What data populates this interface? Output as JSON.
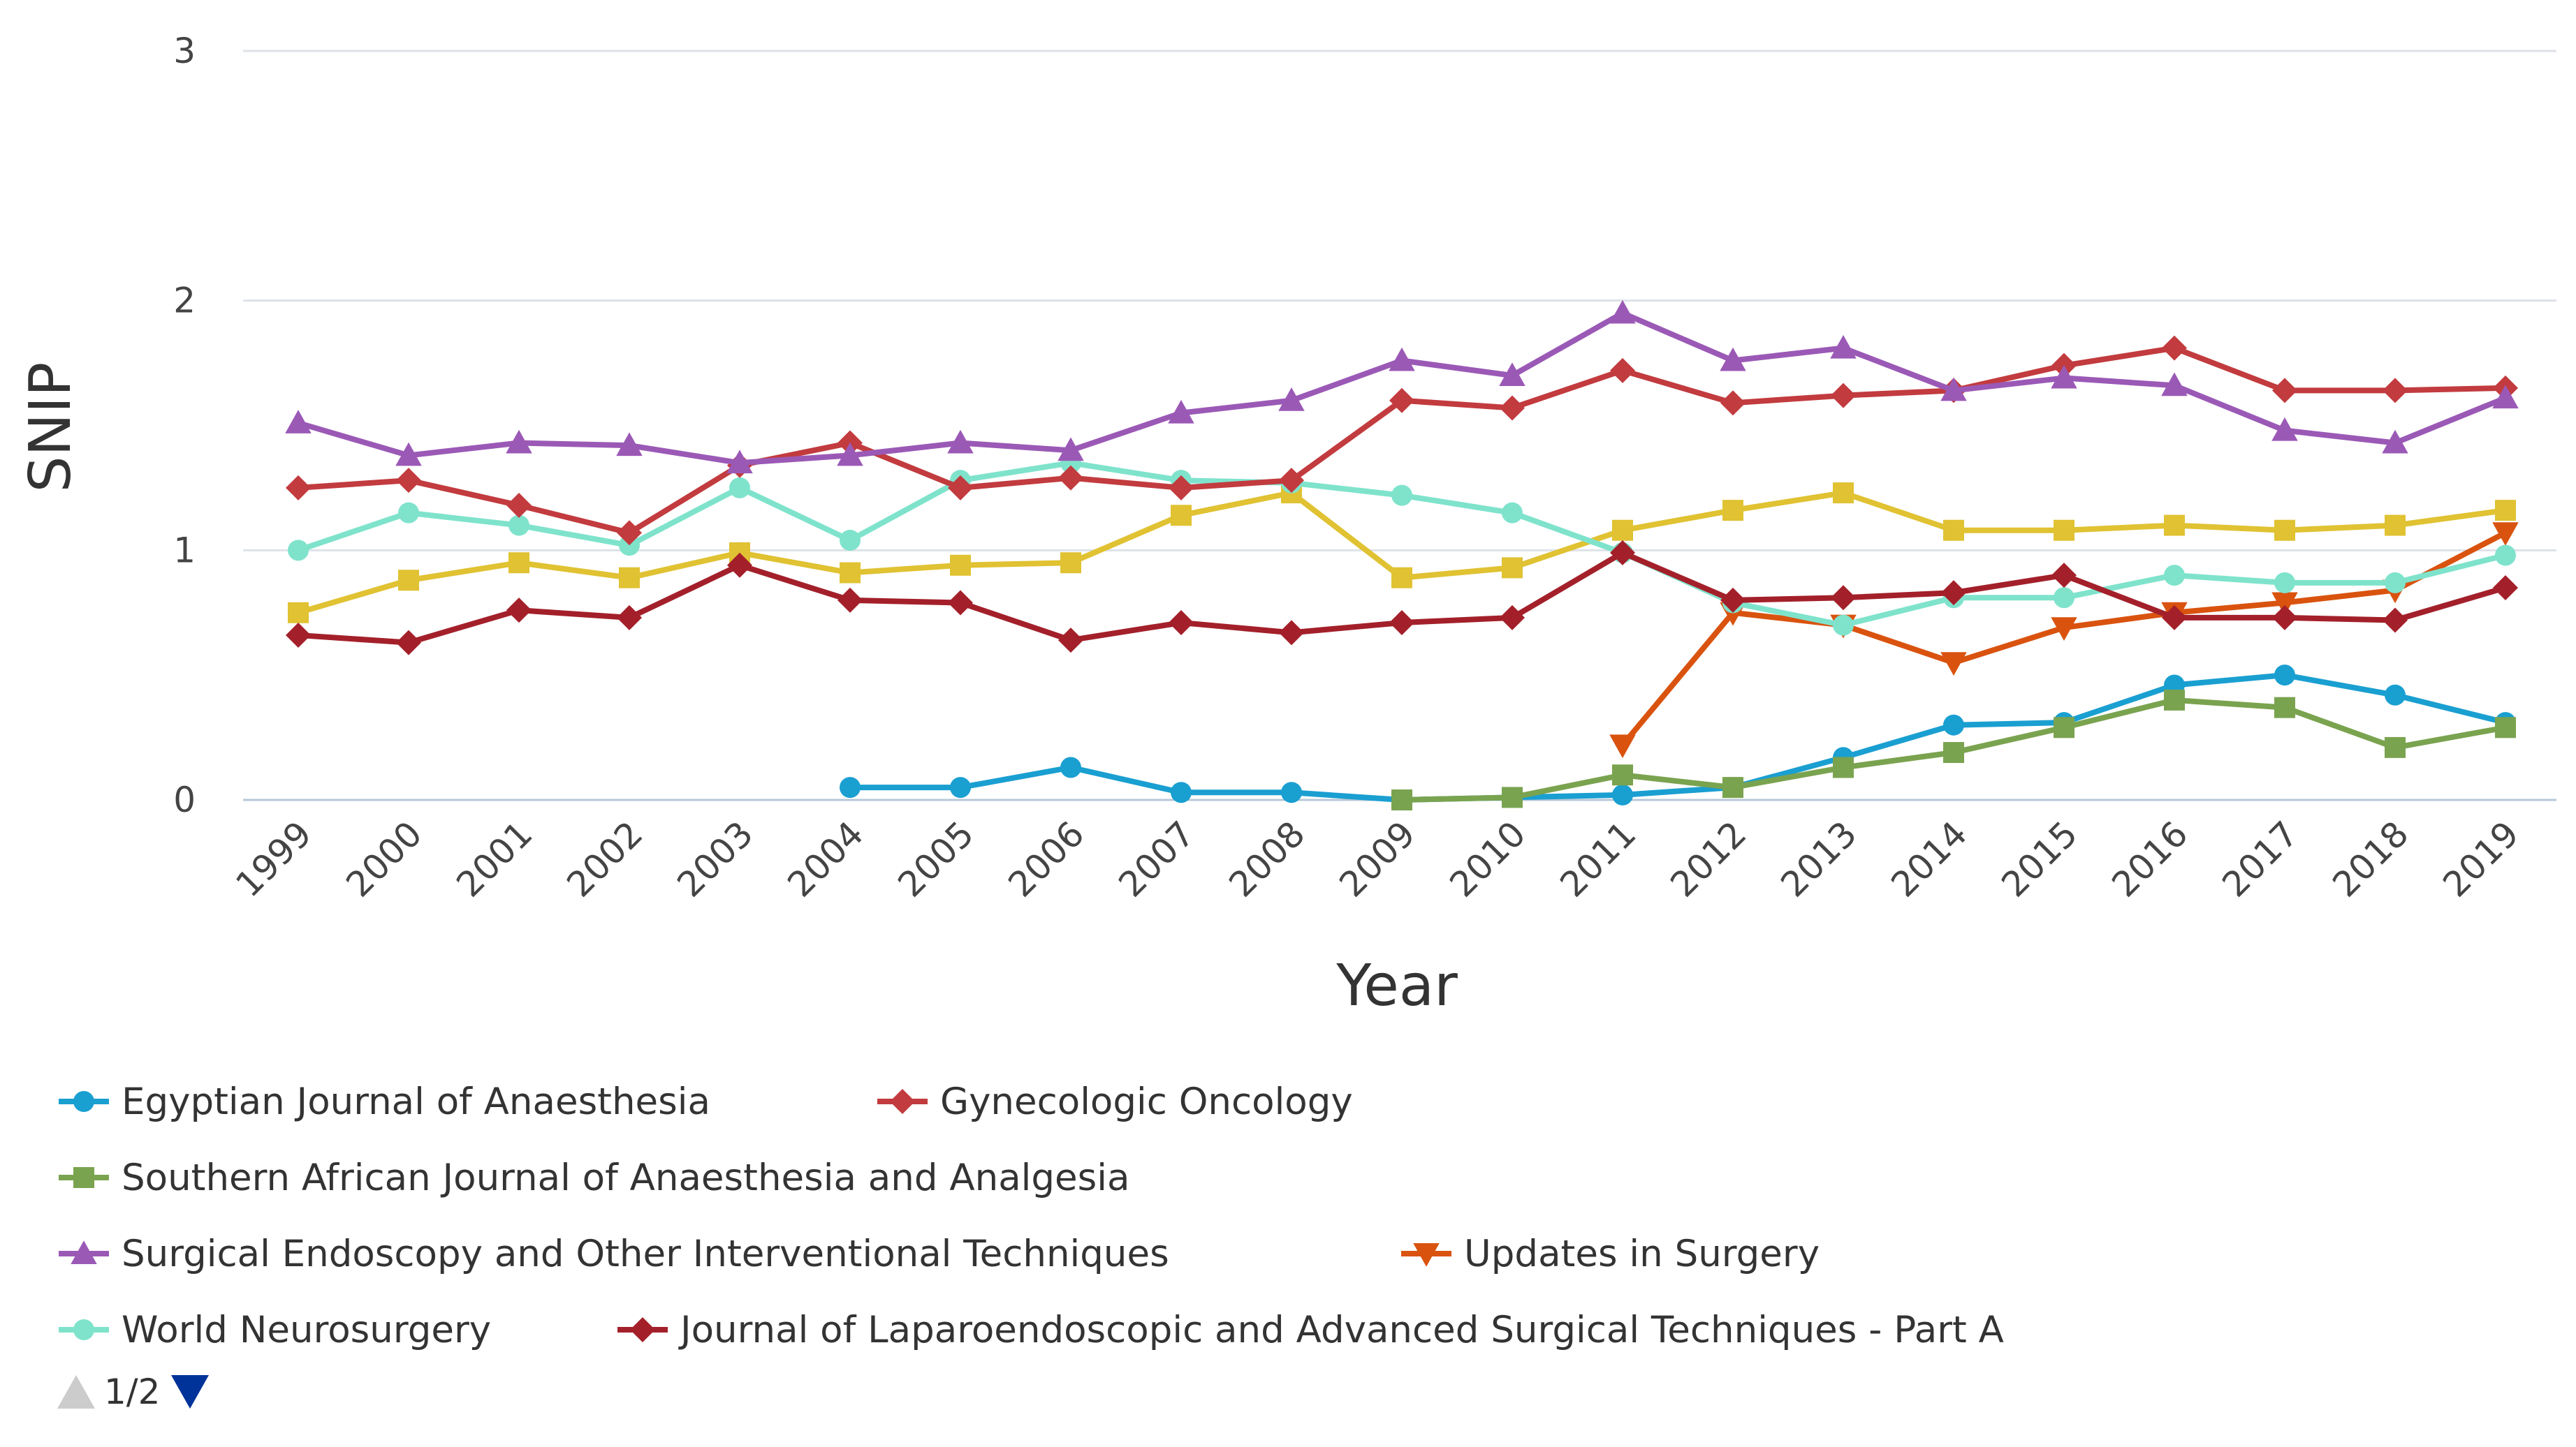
{
  "chart_data": {
    "type": "line",
    "xlabel": "Year",
    "ylabel": "SNIP",
    "ylim": [
      0,
      3
    ],
    "yticks": [
      "0",
      "1",
      "2",
      "3"
    ],
    "grid": true,
    "legend_position": "bottom",
    "x": [
      "1999",
      "2000",
      "2001",
      "2002",
      "2003",
      "2004",
      "2005",
      "2006",
      "2007",
      "2008",
      "2009",
      "2010",
      "2011",
      "2012",
      "2013",
      "2014",
      "2015",
      "2016",
      "2017",
      "2018",
      "2019"
    ],
    "series": [
      {
        "name": "Egyptian Journal of Anaesthesia",
        "color": "#1a9fd1",
        "marker": "circle",
        "values": [
          null,
          null,
          null,
          null,
          null,
          0.05,
          0.05,
          0.13,
          0.03,
          0.03,
          0.0,
          0.01,
          0.02,
          0.05,
          0.17,
          0.3,
          0.31,
          0.46,
          0.5,
          0.42,
          0.31
        ]
      },
      {
        "name": "Gynecologic Oncology",
        "color": "#c23b3e",
        "marker": "diamond",
        "values": [
          1.25,
          1.28,
          1.18,
          1.07,
          1.34,
          1.43,
          1.25,
          1.29,
          1.25,
          1.28,
          1.6,
          1.57,
          1.72,
          1.59,
          1.62,
          1.64,
          1.74,
          1.81,
          1.64,
          1.64,
          1.65
        ]
      },
      {
        "name": "Southern African Journal of Anaesthesia and Analgesia",
        "color": "#7aa34f",
        "marker": "square",
        "values": [
          null,
          null,
          null,
          null,
          null,
          null,
          null,
          null,
          null,
          null,
          0.0,
          0.01,
          0.1,
          0.05,
          0.13,
          0.19,
          0.29,
          0.4,
          0.37,
          0.21,
          0.29
        ]
      },
      {
        "name": "Surgical Endoscopy and Other Interventional Techniques",
        "color": "#9b59b6",
        "marker": "triangle-up",
        "values": [
          1.51,
          1.38,
          1.43,
          1.42,
          1.35,
          1.38,
          1.43,
          1.4,
          1.55,
          1.6,
          1.76,
          1.7,
          1.95,
          1.76,
          1.81,
          1.64,
          1.69,
          1.66,
          1.48,
          1.43,
          1.61
        ]
      },
      {
        "name": "Updates in Surgery",
        "color": "#d9530f",
        "marker": "triangle-down",
        "values": [
          null,
          null,
          null,
          null,
          null,
          null,
          null,
          null,
          null,
          null,
          null,
          null,
          0.22,
          0.75,
          0.7,
          0.55,
          0.69,
          0.75,
          0.79,
          0.84,
          1.07
        ]
      },
      {
        "name": "World Neurosurgery",
        "color": "#7fe3cc",
        "marker": "circle",
        "values": [
          1.0,
          1.15,
          1.1,
          1.02,
          1.25,
          1.04,
          1.28,
          1.35,
          1.28,
          1.27,
          1.22,
          1.15,
          0.99,
          0.79,
          0.7,
          0.81,
          0.81,
          0.9,
          0.87,
          0.87,
          0.98
        ]
      },
      {
        "name": "Journal of Laparoendoscopic and Advanced Surgical Techniques - Part A",
        "color": "#a3202a",
        "marker": "diamond",
        "values": [
          0.66,
          0.63,
          0.76,
          0.73,
          0.94,
          0.8,
          0.79,
          0.64,
          0.71,
          0.67,
          0.71,
          0.73,
          0.99,
          0.8,
          0.81,
          0.83,
          0.9,
          0.73,
          0.73,
          0.72,
          0.85
        ]
      },
      {
        "name": "",
        "color": "#e0c232",
        "marker": "square",
        "values": [
          0.75,
          0.88,
          0.95,
          0.89,
          0.99,
          0.91,
          0.94,
          0.95,
          1.14,
          1.23,
          0.89,
          0.93,
          1.08,
          1.16,
          1.23,
          1.08,
          1.08,
          1.1,
          1.08,
          1.1,
          1.16
        ]
      }
    ]
  },
  "legend": {
    "pager_text": "1/2",
    "pager_prev_color": "#cccccc",
    "pager_next_color": "#003399"
  },
  "icons": {
    "pager_prev": "triangle-up-icon",
    "pager_next": "triangle-down-icon"
  }
}
